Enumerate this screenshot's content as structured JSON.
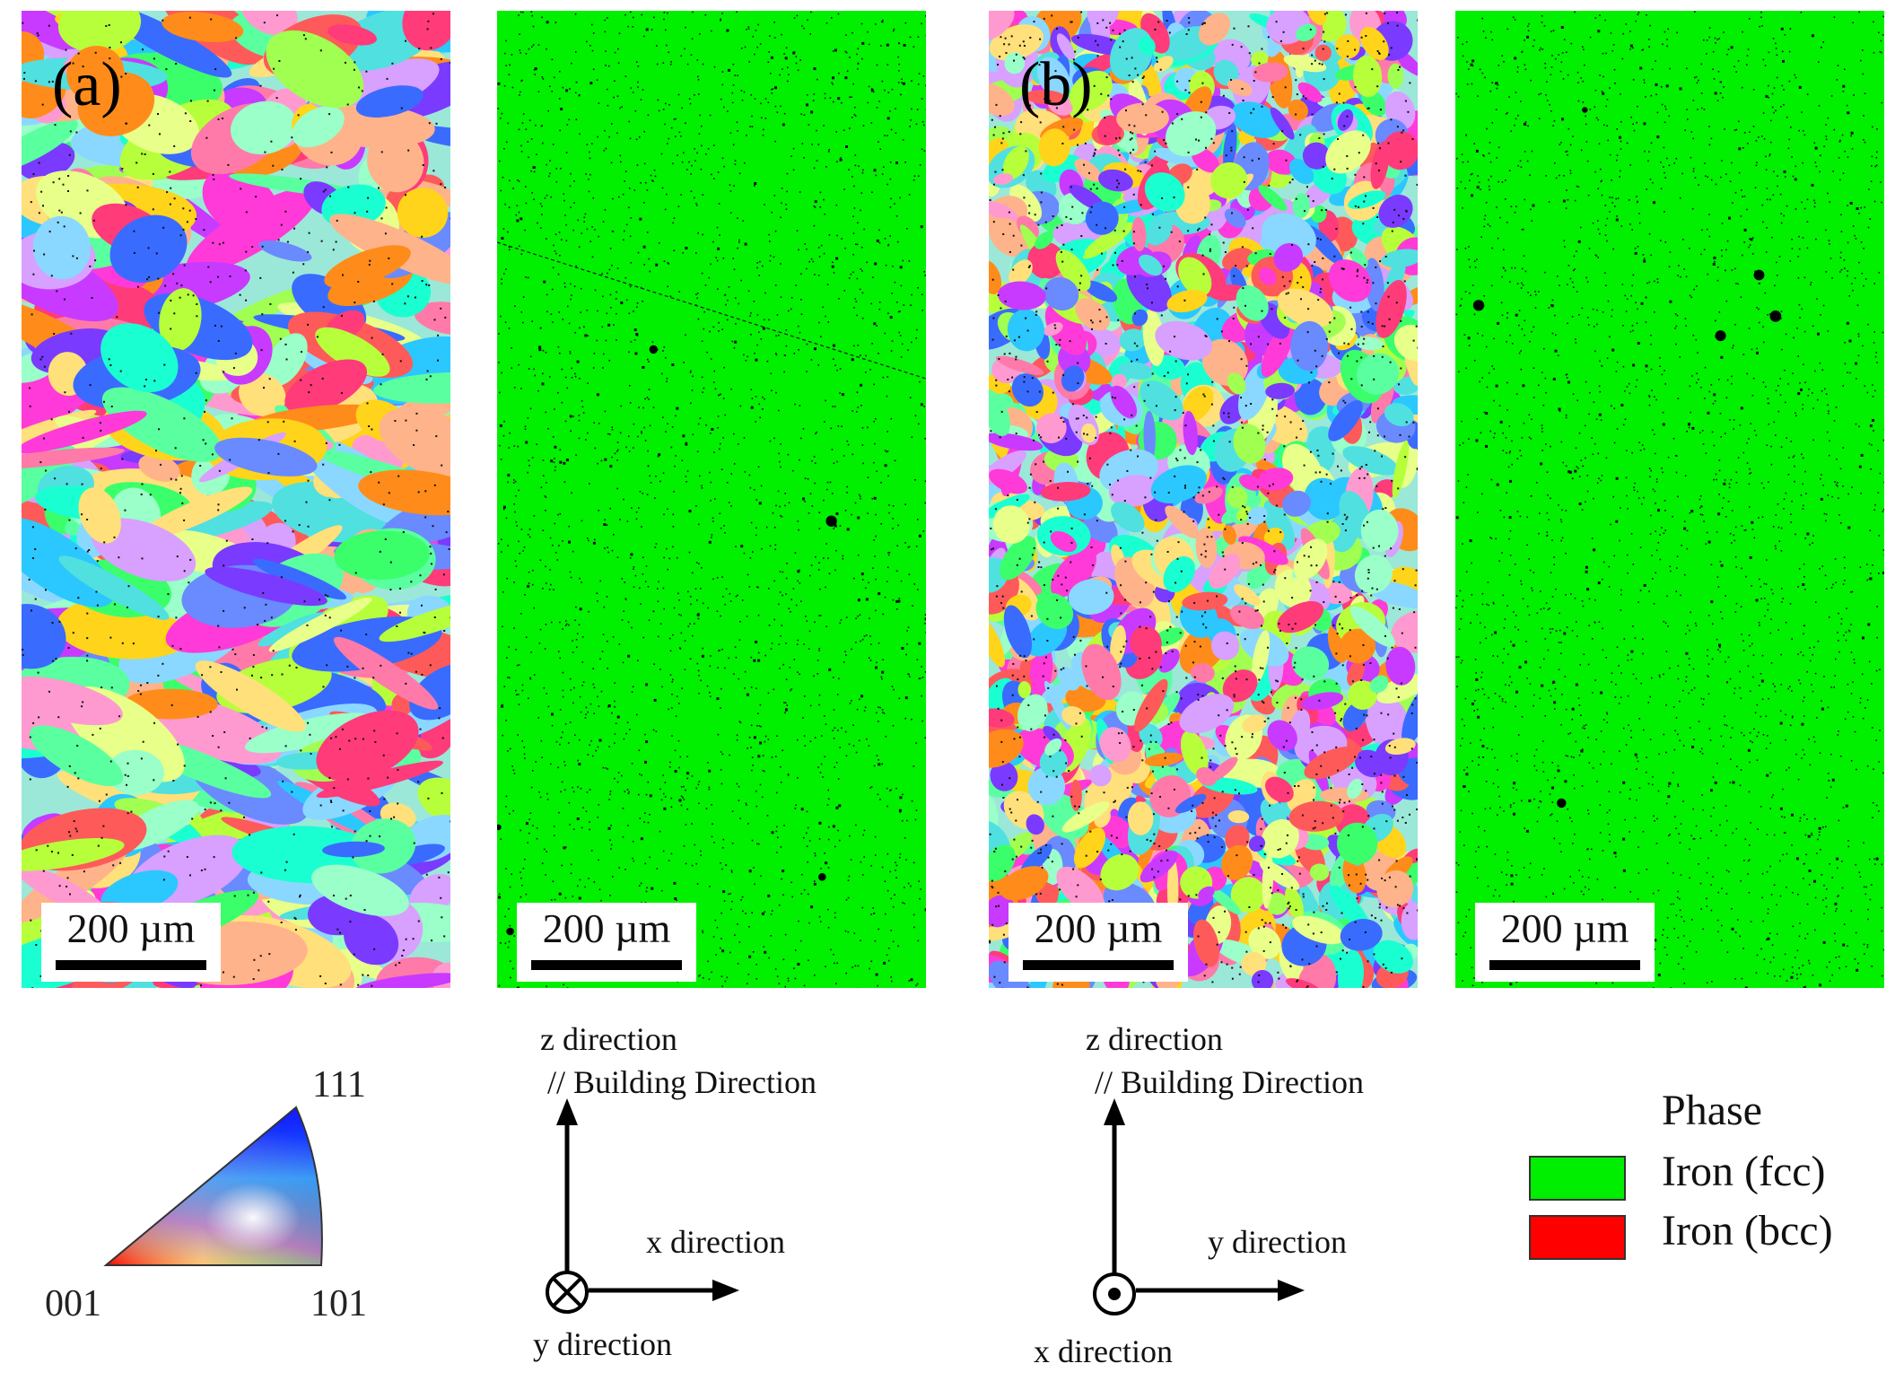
{
  "panels": [
    {
      "id": "a-ipf",
      "type": "ipf-map",
      "label": "(a)",
      "scale_bar": "200 µm",
      "grain_style": "coarse-columnar"
    },
    {
      "id": "a-phase",
      "type": "phase-map",
      "label": "",
      "scale_bar": "200 µm",
      "color": "#00f000"
    },
    {
      "id": "b-ipf",
      "type": "ipf-map",
      "label": "(b)",
      "scale_bar": "200 µm",
      "grain_style": "fine-equiaxed"
    },
    {
      "id": "b-phase",
      "type": "phase-map",
      "label": "",
      "scale_bar": "200 µm",
      "color": "#00f000"
    }
  ],
  "ipf_triangle": {
    "corner_001": "001",
    "corner_101": "101",
    "corner_111": "111",
    "colors": {
      "001": "#ff0000",
      "101": "#00ff00",
      "111": "#0000ff"
    }
  },
  "axes": [
    {
      "id": "axes-a",
      "up_label": "z direction",
      "up_sub_label": "// Building Direction",
      "right_label": "x direction",
      "out_label": "y direction",
      "out_symbol": "into-page-cross"
    },
    {
      "id": "axes-b",
      "up_label": "z direction",
      "up_sub_label": "// Building Direction",
      "right_label": "y direction",
      "out_label": "x direction",
      "out_symbol": "out-of-page-dot"
    }
  ],
  "phase_legend": {
    "title": "Phase",
    "entries": [
      {
        "label": "Iron (fcc)",
        "color": "#00ee00"
      },
      {
        "label": "Iron (bcc)",
        "color": "#ff0000"
      }
    ]
  }
}
